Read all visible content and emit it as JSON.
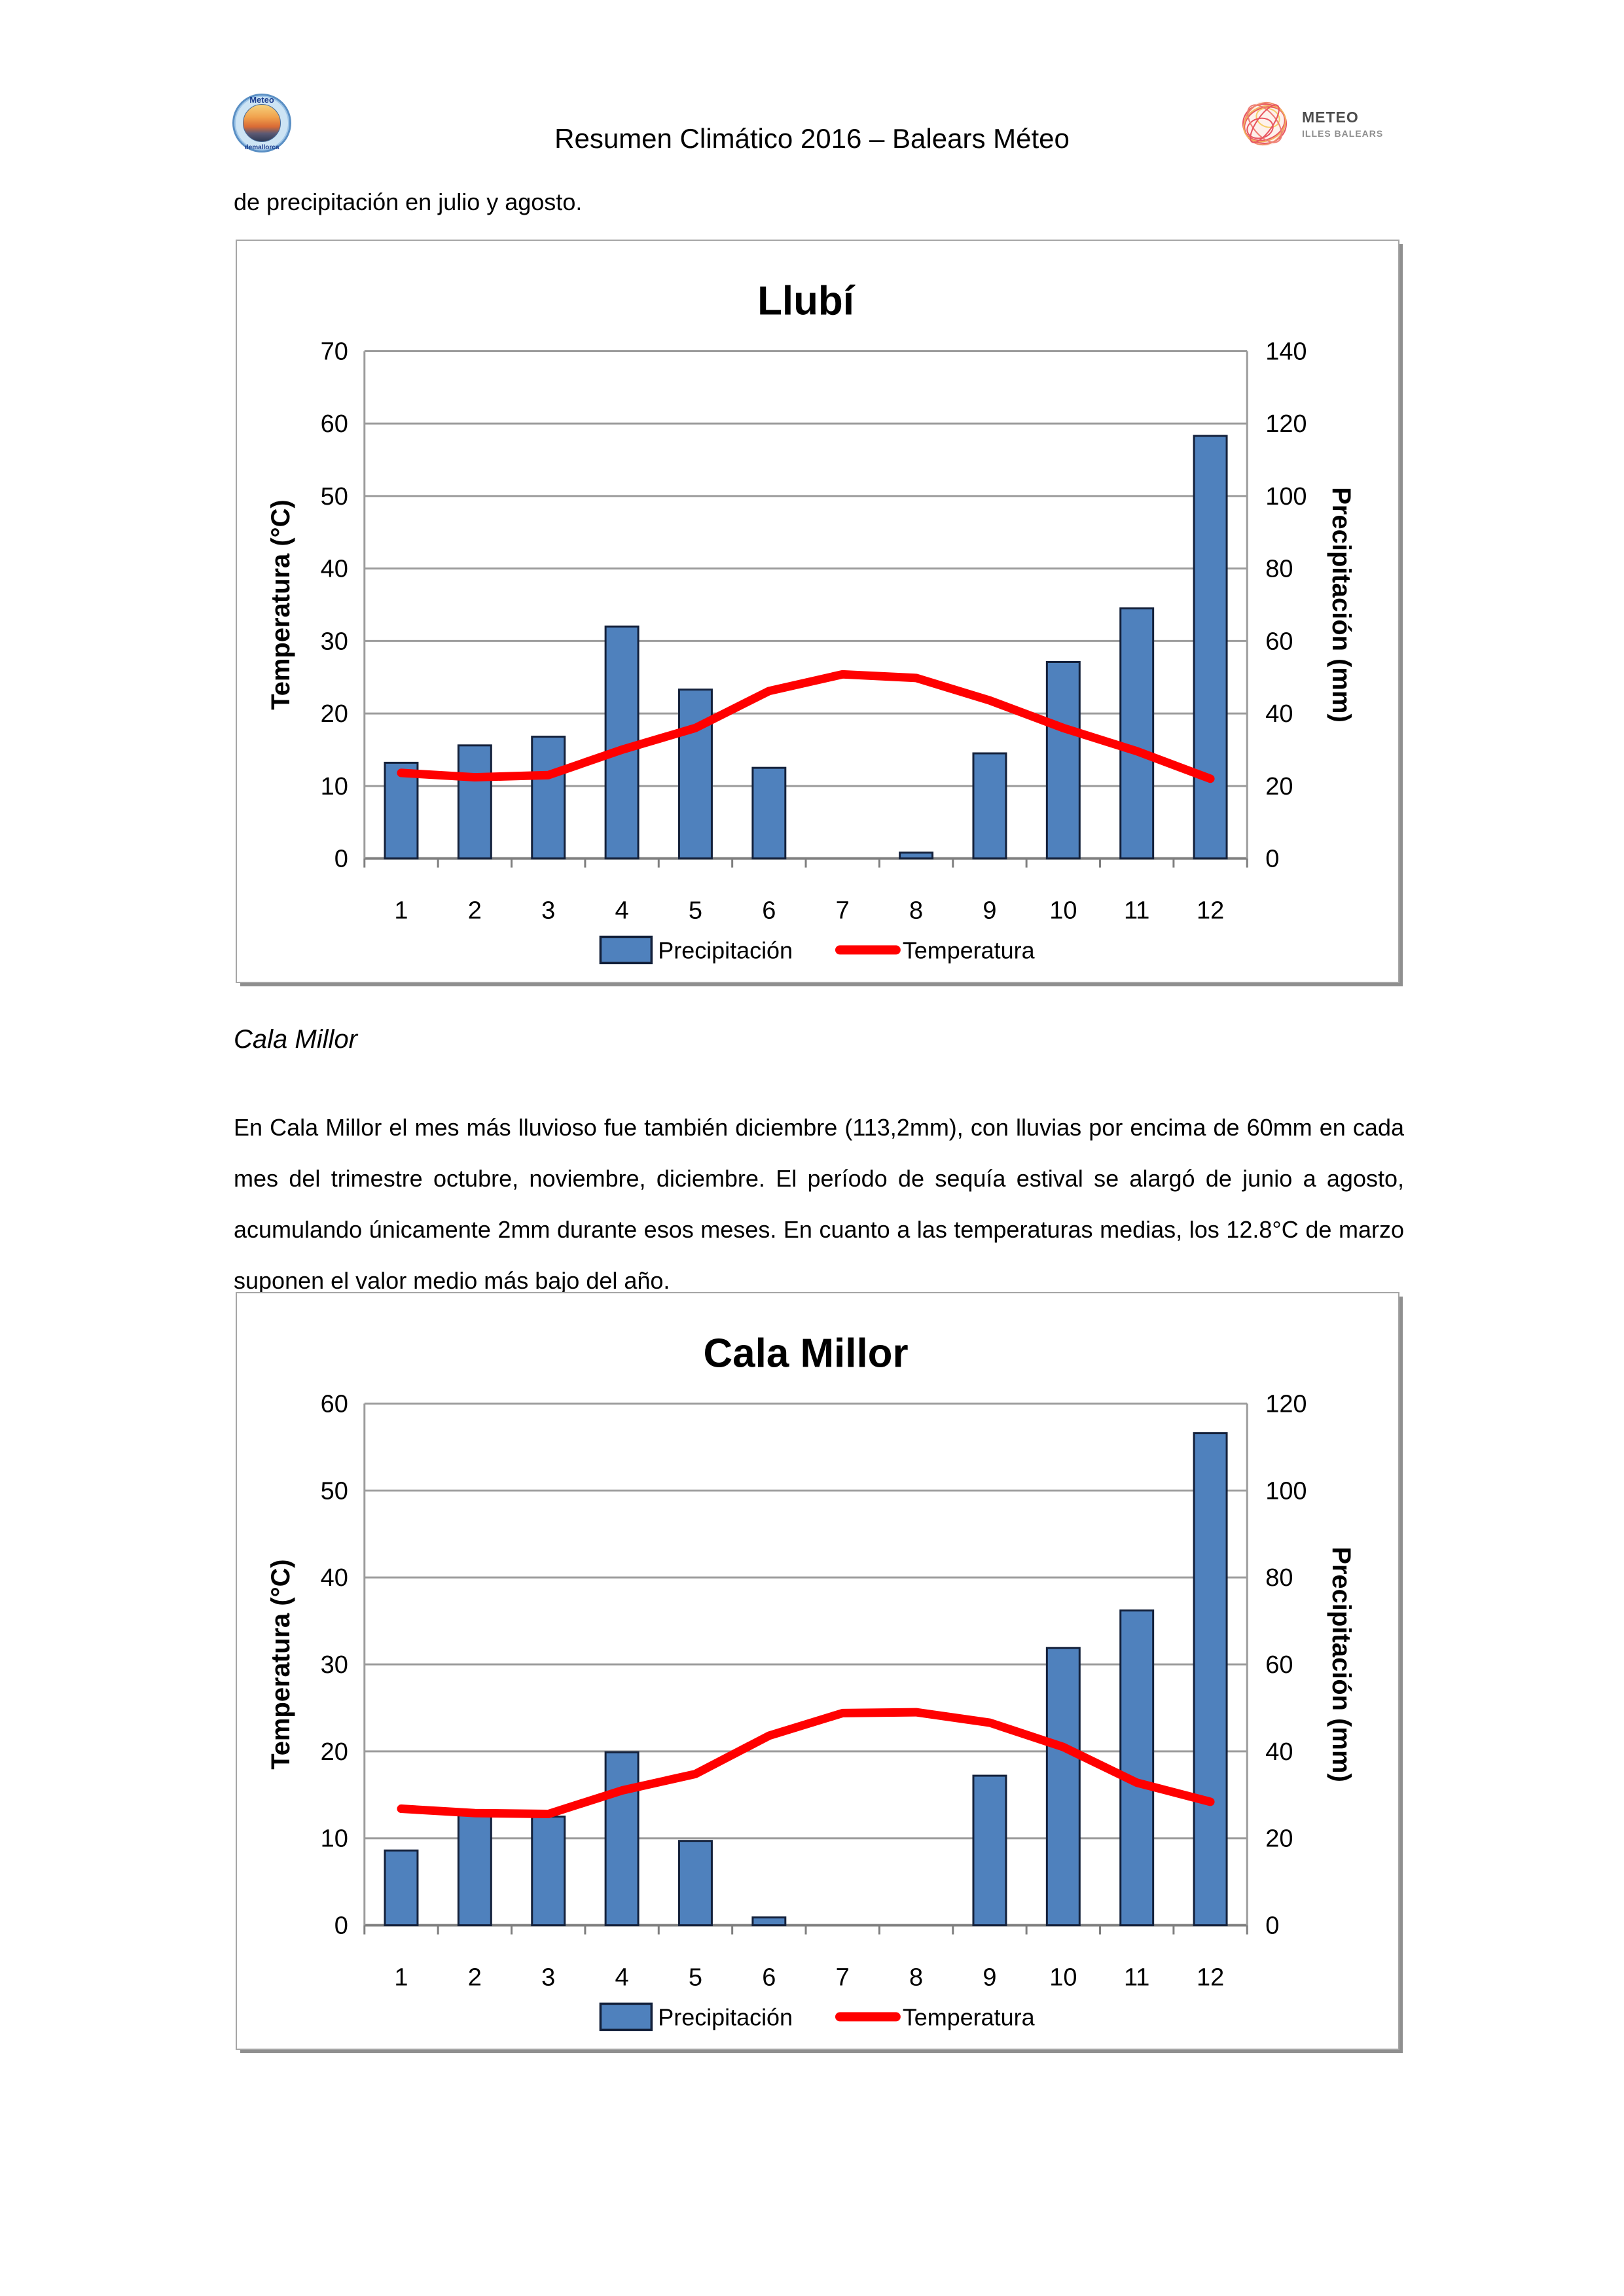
{
  "header": {
    "title": "Resumen Climático 2016 – Balears Méteo",
    "logo_left": {
      "arc_top": "Meteo",
      "arc_bottom": "demallorca"
    },
    "logo_right": {
      "line1": "METEO",
      "line2": "ILLES BALEARS"
    }
  },
  "intro": {
    "text": "de precipitación en julio y agosto."
  },
  "section": {
    "heading": "Cala Millor",
    "paragraph": "En Cala Millor el mes más lluvioso fue también diciembre (113,2mm), con lluvias por encima de 60mm en cada mes del trimestre octubre, noviembre, diciembre. El período de sequía estival se alargó de junio a agosto, acumulando únicamente 2mm durante esos meses. En cuanto a las temperaturas medias, los 12.8°C de marzo suponen el valor medio más bajo del año."
  },
  "chart_data": [
    {
      "type": "bar+line",
      "title": "Llubí",
      "categories": [
        "1",
        "2",
        "3",
        "4",
        "5",
        "6",
        "7",
        "8",
        "9",
        "10",
        "11",
        "12"
      ],
      "series": [
        {
          "name": "Precipitación",
          "type": "bar",
          "axis": "right",
          "values": [
            26.4,
            31.2,
            33.6,
            64.0,
            46.6,
            25.0,
            0,
            1.6,
            29.0,
            54.2,
            69.0,
            116.6
          ]
        },
        {
          "name": "Temperatura",
          "type": "line",
          "axis": "left",
          "values": [
            11.8,
            11.2,
            11.5,
            15.0,
            18.0,
            23.1,
            25.4,
            24.9,
            21.8,
            18.0,
            14.8,
            11.0
          ]
        }
      ],
      "left_axis": {
        "label": "Temperatura (°C)",
        "min": 0,
        "max": 70,
        "step": 10
      },
      "right_axis": {
        "label": "Precipitación (mm)",
        "min": 0,
        "max": 140,
        "step": 20
      },
      "legend": [
        "Precipitación",
        "Temperatura"
      ],
      "grid": true,
      "legend_position": "bottom",
      "colors": {
        "bar_fill": "#4F81BD",
        "bar_border": "#14213B",
        "line": "#FF0000",
        "grid": "#9C9C9C",
        "axis": "#7F7F7F",
        "text": "#000000"
      }
    },
    {
      "type": "bar+line",
      "title": "Cala Millor",
      "categories": [
        "1",
        "2",
        "3",
        "4",
        "5",
        "6",
        "7",
        "8",
        "9",
        "10",
        "11",
        "12"
      ],
      "series": [
        {
          "name": "Precipitación",
          "type": "bar",
          "axis": "right",
          "values": [
            17.2,
            25.4,
            25.0,
            39.8,
            19.4,
            1.8,
            0,
            0,
            34.4,
            63.8,
            72.4,
            113.2
          ]
        },
        {
          "name": "Temperatura",
          "type": "line",
          "axis": "left",
          "values": [
            13.4,
            12.9,
            12.8,
            15.5,
            17.4,
            21.8,
            24.4,
            24.5,
            23.3,
            20.5,
            16.4,
            14.2
          ]
        }
      ],
      "left_axis": {
        "label": "Temperatura (°C)",
        "min": 0,
        "max": 60,
        "step": 10
      },
      "right_axis": {
        "label": "Precipitación (mm)",
        "min": 0,
        "max": 120,
        "step": 20
      },
      "legend": [
        "Precipitación",
        "Temperatura"
      ],
      "grid": true,
      "legend_position": "bottom",
      "colors": {
        "bar_fill": "#4F81BD",
        "bar_border": "#14213B",
        "line": "#FF0000",
        "grid": "#9C9C9C",
        "axis": "#7F7F7F",
        "text": "#000000"
      }
    }
  ]
}
